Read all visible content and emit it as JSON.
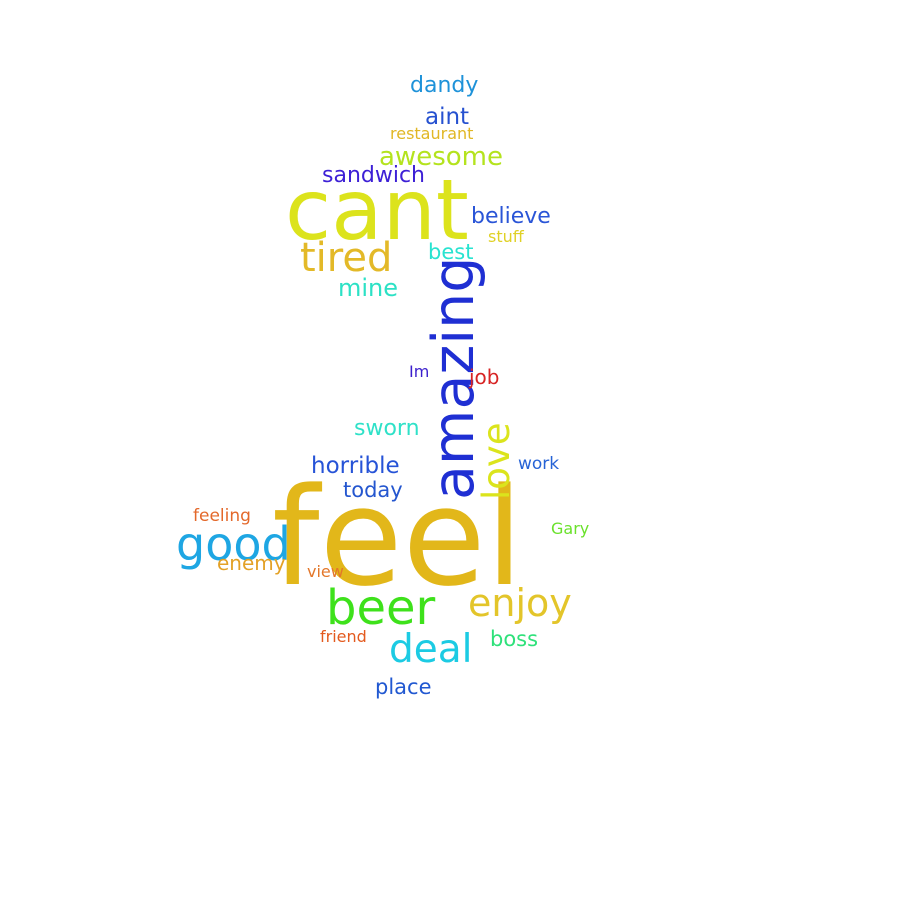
{
  "words": {
    "feel": "feel",
    "cant": "cant",
    "amazing": "amazing",
    "good": "good",
    "beer": "beer",
    "tired": "tired",
    "enjoy": "enjoy",
    "deal": "deal",
    "love": "love",
    "awesome": "awesome",
    "sandwich": "sandwich",
    "believe": "believe",
    "dandy": "dandy",
    "aint": "aint",
    "restaurant": "restaurant",
    "best": "best",
    "stuff": "stuff",
    "mine": "mine",
    "im": "Im",
    "job": "job",
    "sworn": "sworn",
    "horrible": "horrible",
    "work": "work",
    "today": "today",
    "feeling": "feeling",
    "gary": "Gary",
    "enemy": "enemy",
    "view": "view",
    "friend": "friend",
    "boss": "boss",
    "place": "place"
  },
  "colors": {
    "background": "#ffffff",
    "gold": "#e2b71a",
    "yellow": "#dce31c",
    "blue": "#1f2fd3",
    "green": "#3ee11b",
    "cyan": "#1ccbe3"
  }
}
